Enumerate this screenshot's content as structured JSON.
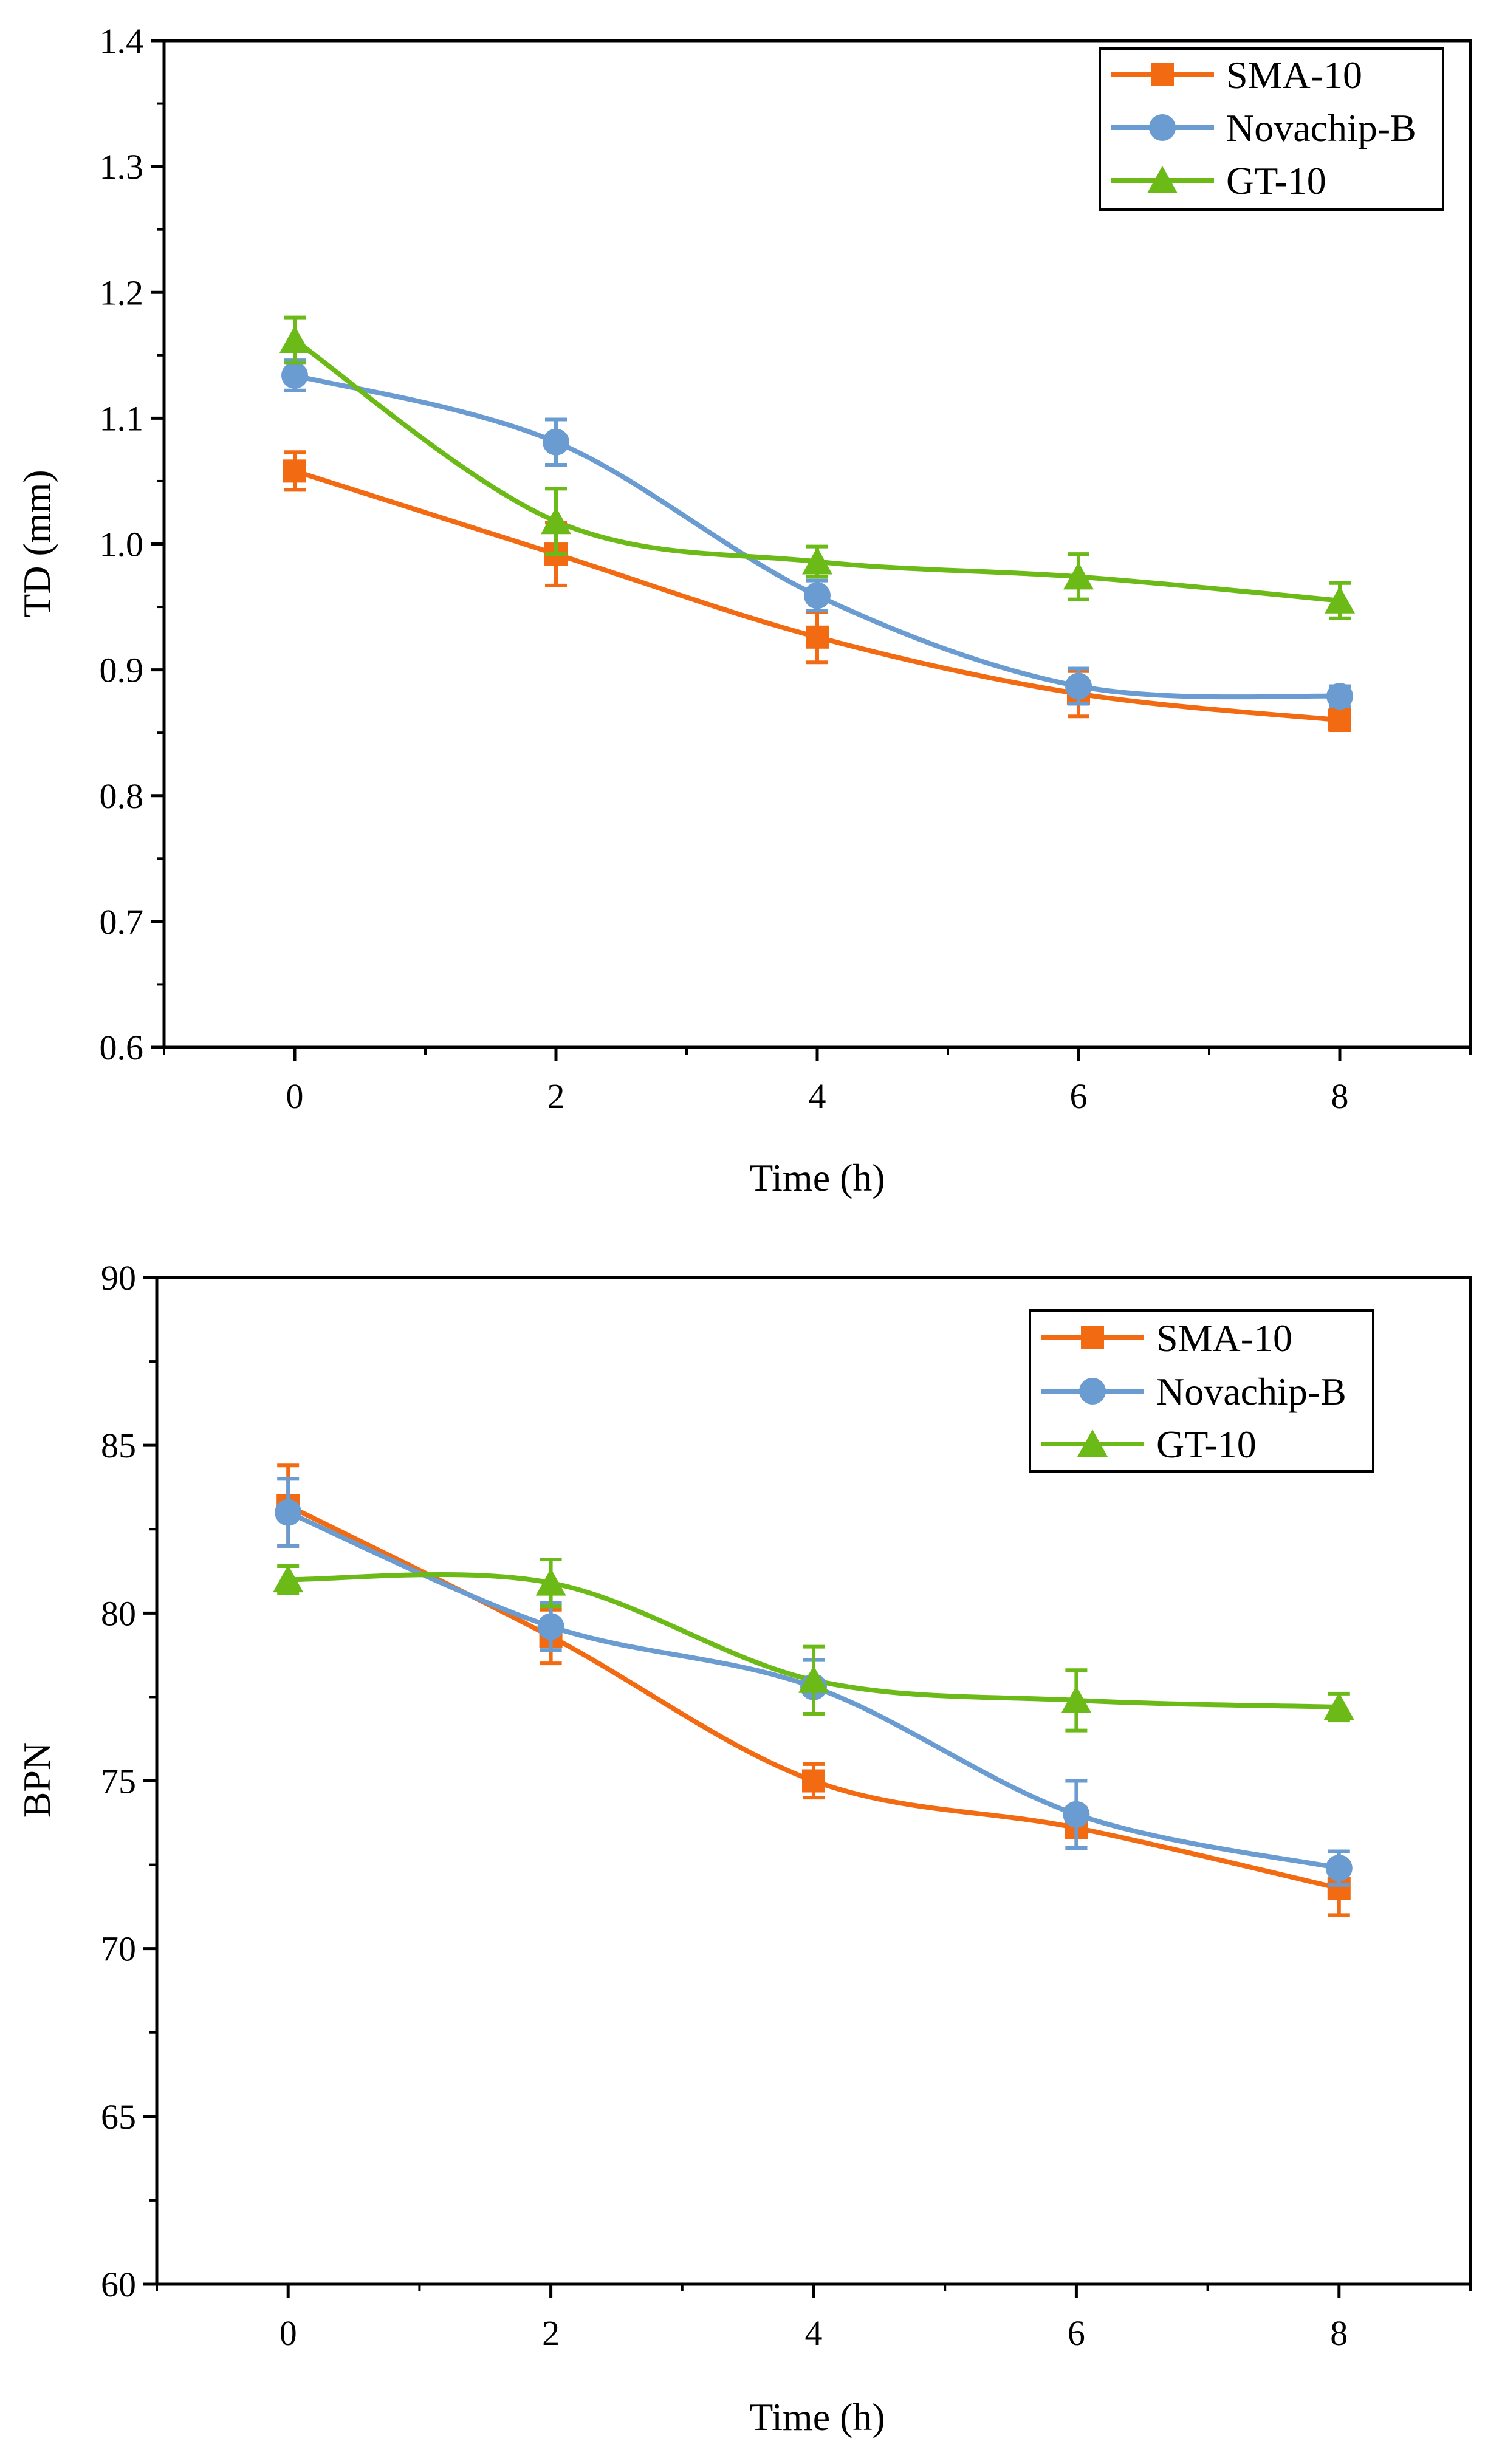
{
  "colors": {
    "sma": "#f26a11",
    "nova": "#6a9bd1",
    "gt": "#6cba17",
    "axis": "#000000"
  },
  "chart_data": [
    {
      "type": "line",
      "xlabel": "Time (h)",
      "ylabel": "TD (mm)",
      "x": [
        0,
        2,
        4,
        6,
        8
      ],
      "xlim": [
        -1,
        9
      ],
      "ylim": [
        0.6,
        1.4
      ],
      "xticks": [
        "0",
        "2",
        "4",
        "6",
        "8"
      ],
      "yticks": [
        "0.6",
        "0.7",
        "0.8",
        "0.9",
        "1.0",
        "1.1",
        "1.2",
        "1.3",
        "1.4"
      ],
      "legend_position": "top-right",
      "grid": false,
      "series": [
        {
          "name": "SMA-10",
          "marker": "square",
          "color": "#f26a11",
          "values": [
            1.058,
            0.992,
            0.926,
            0.881,
            0.86
          ],
          "errors": [
            0.015,
            0.025,
            0.02,
            0.018,
            0.008
          ]
        },
        {
          "name": "Novachip-B",
          "marker": "circle",
          "color": "#6a9bd1",
          "values": [
            1.134,
            1.081,
            0.959,
            0.887,
            0.879
          ],
          "errors": [
            0.012,
            0.018,
            0.012,
            0.014,
            0.008
          ]
        },
        {
          "name": "GT-10",
          "marker": "triangle",
          "color": "#6cba17",
          "values": [
            1.162,
            1.018,
            0.986,
            0.974,
            0.955
          ],
          "errors": [
            0.018,
            0.026,
            0.012,
            0.018,
            0.014
          ]
        }
      ]
    },
    {
      "type": "line",
      "xlabel": "Time (h)",
      "ylabel": "BPN",
      "x": [
        0,
        2,
        4,
        6,
        8
      ],
      "xlim": [
        -1,
        9
      ],
      "ylim": [
        60,
        90
      ],
      "xticks": [
        "0",
        "2",
        "4",
        "6",
        "8"
      ],
      "yticks": [
        "60",
        "65",
        "70",
        "75",
        "80",
        "85",
        "90"
      ],
      "legend_position": "top-right",
      "grid": false,
      "series": [
        {
          "name": "SMA-10",
          "marker": "square",
          "color": "#f26a11",
          "values": [
            83.2,
            79.3,
            75.0,
            73.6,
            71.8
          ],
          "errors": [
            1.2,
            0.8,
            0.5,
            0.6,
            0.8
          ]
        },
        {
          "name": "Novachip-B",
          "marker": "circle",
          "color": "#6a9bd1",
          "values": [
            83.0,
            79.6,
            77.8,
            74.0,
            72.4
          ],
          "errors": [
            1.0,
            0.7,
            0.8,
            1.0,
            0.5
          ]
        },
        {
          "name": "GT-10",
          "marker": "triangle",
          "color": "#6cba17",
          "values": [
            81.0,
            80.9,
            78.0,
            77.4,
            77.2
          ],
          "errors": [
            0.4,
            0.7,
            1.0,
            0.9,
            0.4
          ]
        }
      ]
    }
  ]
}
